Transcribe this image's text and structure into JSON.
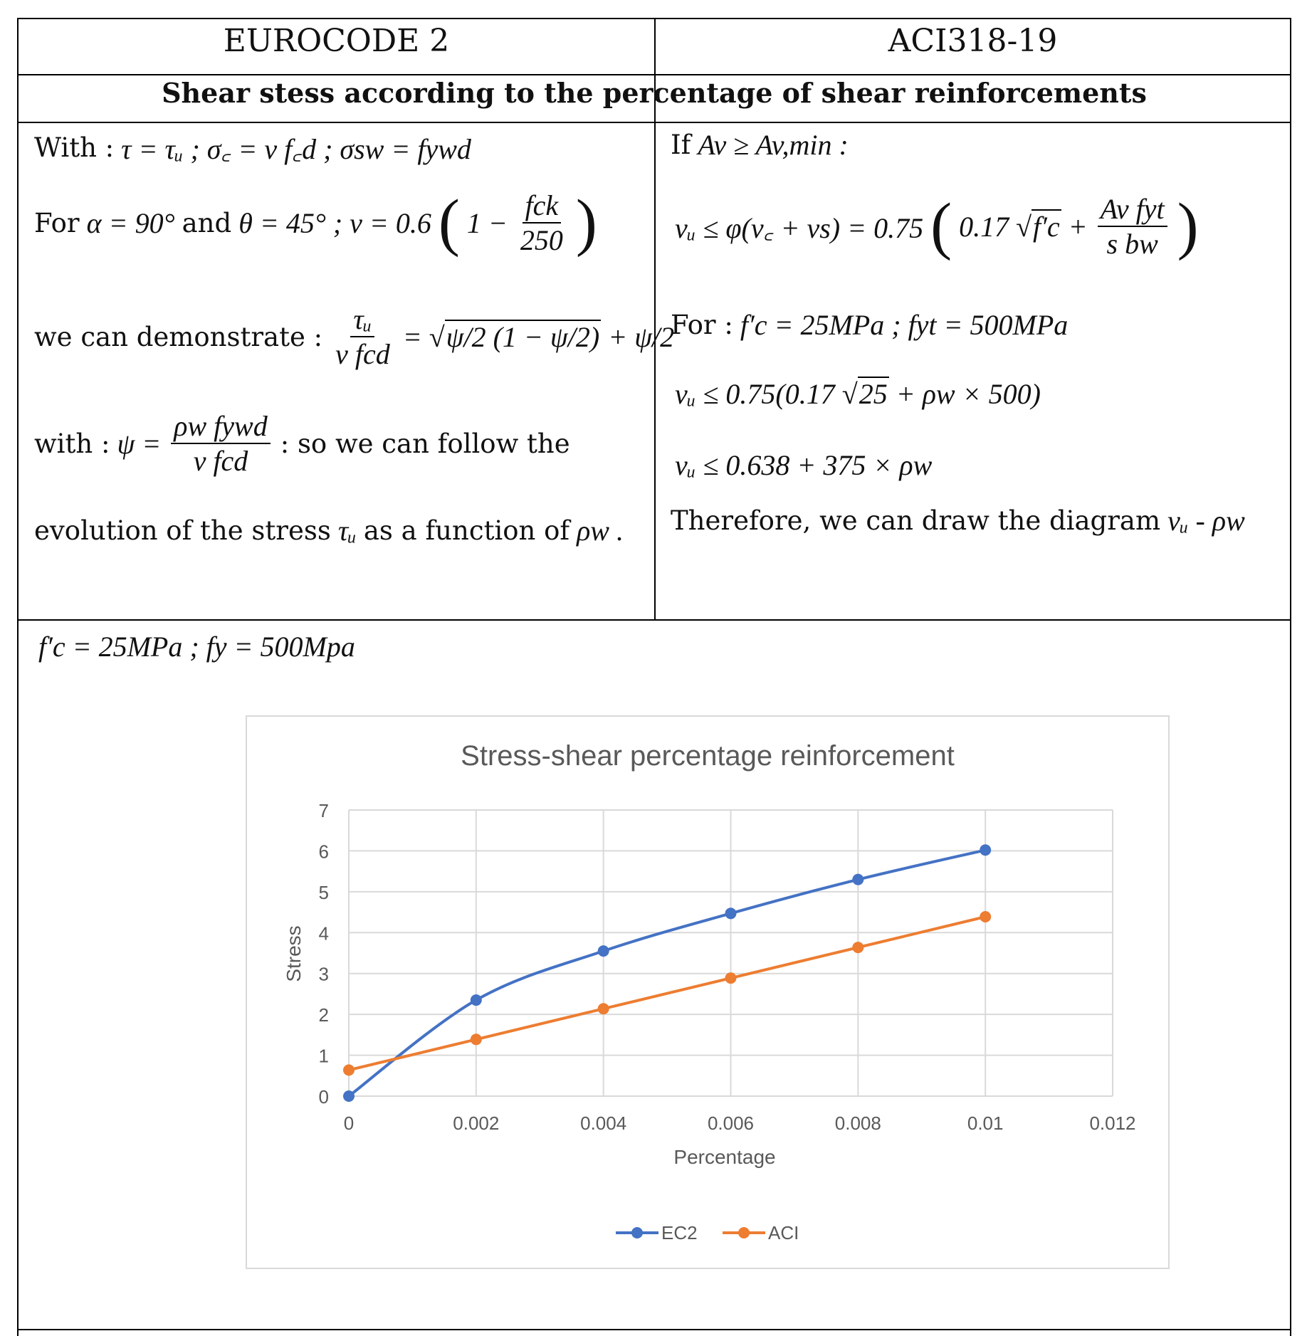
{
  "header": {
    "left": "EUROCODE 2",
    "right": "ACI318-19"
  },
  "section_title": "Shear stess according to the percentage of shear reinforcements",
  "eurocode": {
    "l1_label": "With :",
    "l1_math": "τ = τᵤ ;  σ꜀ = ν f꜀d ;  σsw = fywd",
    "l2_label": "For",
    "l2_math_a": "α = 90°",
    "l2_and": "and",
    "l2_math_b": "θ = 45°  ;  ν = 0.6",
    "l2_inner": "1 −",
    "l2_num": "fck",
    "l2_den": "250",
    "l3_label": "we can demonstrate :",
    "l3_num": "τᵤ",
    "l3_den": "ν fcd",
    "l3_eq": "=",
    "l3_rad": "ψ/2 (1 − ψ/2)",
    "l3_plus": "+ ψ/2",
    "l4_label": "with :",
    "l4_lhs": "ψ =",
    "l4_num": "ρw fywd",
    "l4_den": "ν fcd",
    "l4_rest": ": so we can follow the",
    "l5_text": "evolution of the stress",
    "l5_tau": "τᵤ",
    "l5_mid": "as a function of",
    "l5_rho": "ρw ."
  },
  "aci": {
    "l1_label": "If",
    "l1_math": "Av ≥ Av,min  :",
    "l2_math": "vᵤ ≤ φ(v꜀ + vs) = 0.75",
    "l2_inner": "0.17",
    "l2_sqrt": "f′c",
    "l2_plus": "+",
    "l2_num": "Av fyt",
    "l2_den": "s bw",
    "l3_label": "For :",
    "l3_math": "f′c = 25MPa ;  fyt = 500MPa",
    "l4_math_a": "vᵤ ≤ 0.75(0.17",
    "l4_sqrt": "25",
    "l4_math_b": "+ ρw × 500)",
    "l5_math": "vᵤ ≤ 0.638 + 375 × ρw",
    "l6_text": "Therefore, we can draw the diagram",
    "l6_math": "vᵤ - ρw"
  },
  "bottom": {
    "params": "f′c = 25MPa   ;   fy = 500Mpa"
  },
  "chart_data": {
    "type": "line",
    "title": "Stress-shear percentage reinforcement",
    "xlabel": "Percentage",
    "ylabel": "Stress",
    "xlim": [
      0,
      0.012
    ],
    "ylim": [
      0,
      7
    ],
    "x_ticks": [
      "0",
      "0.002",
      "0.004",
      "0.006",
      "0.008",
      "0.01",
      "0.012"
    ],
    "y_ticks": [
      "0",
      "1",
      "2",
      "3",
      "4",
      "5",
      "6",
      "7"
    ],
    "grid": true,
    "legend": "bottom",
    "x": [
      0,
      0.002,
      0.004,
      0.006,
      0.008,
      0.01
    ],
    "series": [
      {
        "name": "EC2",
        "color": "#4472C4",
        "smooth": true,
        "values": [
          0,
          2.35,
          3.55,
          4.47,
          5.3,
          6.02
        ]
      },
      {
        "name": "ACI",
        "color": "#ED7D31",
        "smooth": false,
        "values": [
          0.638,
          1.388,
          2.138,
          2.888,
          3.638,
          4.388
        ]
      }
    ]
  }
}
